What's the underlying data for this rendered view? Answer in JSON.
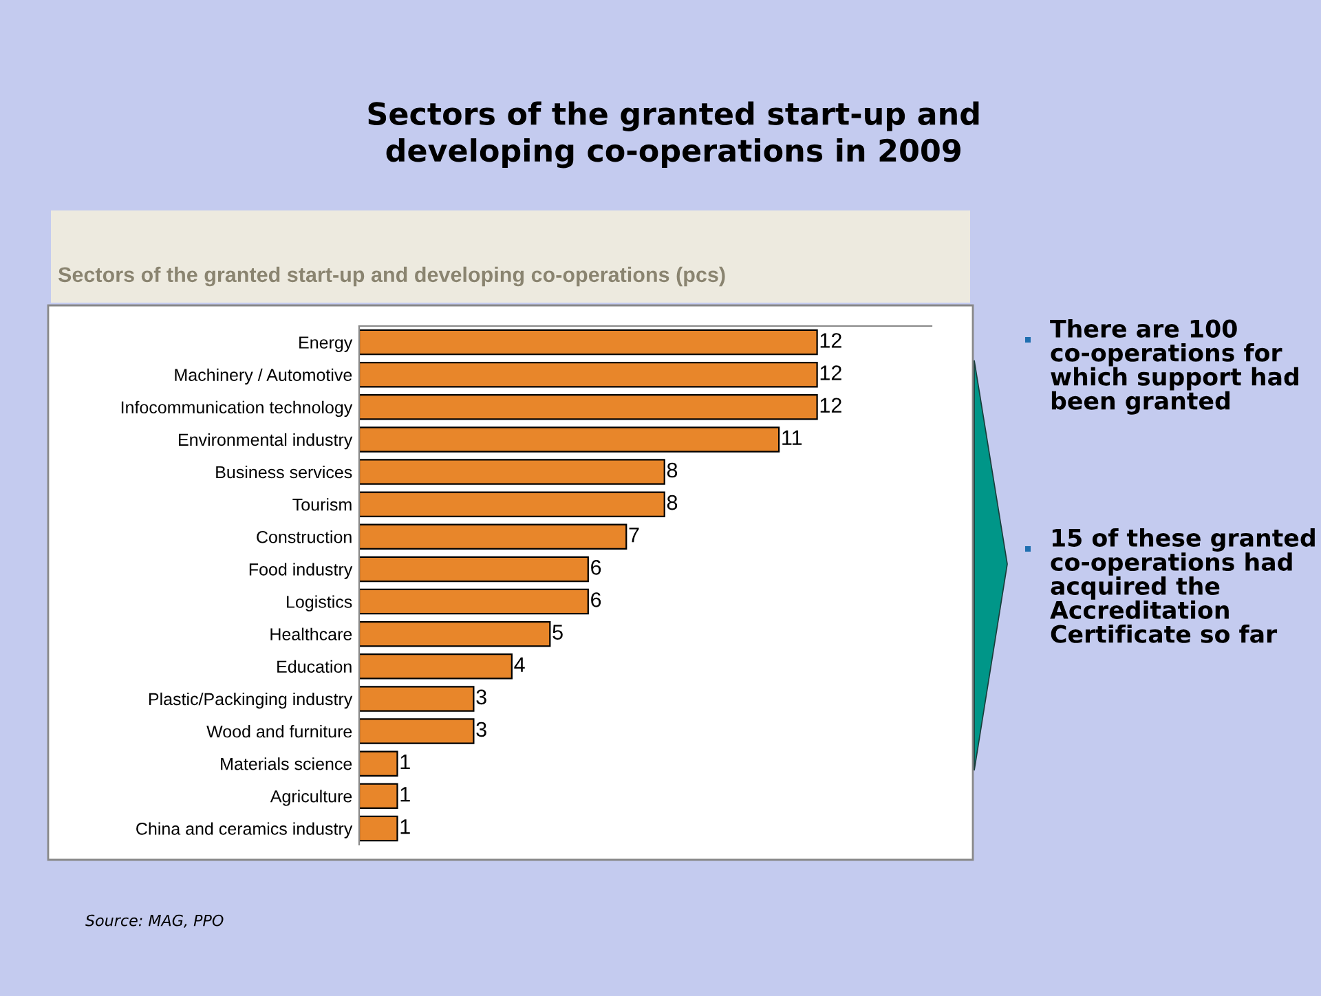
{
  "chart_data": {
    "type": "bar",
    "orientation": "horizontal",
    "title": "Sectors of the granted start-up and\ndeveloping co-operations in 2009",
    "subtitle": "Sectors of the granted start-up and developing co-operations (pcs)",
    "categories": [
      "Energy",
      "Machinery / Automotive",
      "Infocommunication technology",
      "Environmental industry",
      "Business services",
      "Tourism",
      "Construction",
      "Food industry",
      "Logistics",
      "Healthcare",
      "Education",
      "Plastic/Packinging industry",
      "Wood and furniture",
      "Materials science",
      "Agriculture",
      "China and ceramics industry"
    ],
    "values": [
      12,
      12,
      12,
      11,
      8,
      8,
      7,
      6,
      6,
      5,
      4,
      3,
      3,
      1,
      1,
      1
    ],
    "color": "#e8862a",
    "xlim": [
      0,
      15
    ],
    "data_labels": true,
    "tick_labels": "y",
    "grid": false,
    "legend": false,
    "annotations": [
      "There are 100 co-operations for which support had been granted",
      "15 of these granted co-operations had acquired the Accreditation Certificate so far",
      "Source: MAG, PPO"
    ]
  }
}
